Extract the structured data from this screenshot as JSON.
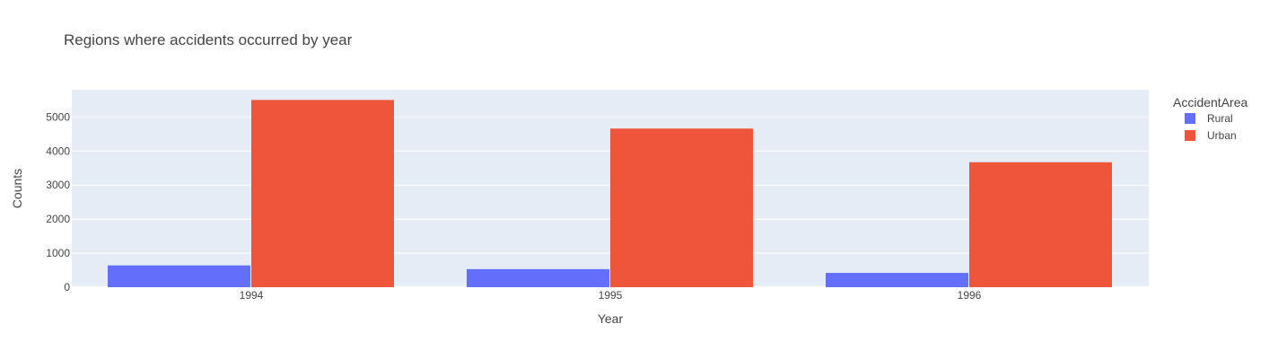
{
  "chart_data": {
    "type": "bar",
    "title": "Regions where accidents occurred by year",
    "xlabel": "Year",
    "ylabel": "Counts",
    "categories": [
      "1994",
      "1995",
      "1996"
    ],
    "series": [
      {
        "name": "Rural",
        "values": [
          640,
          530,
          420
        ],
        "color": "#636efa"
      },
      {
        "name": "Urban",
        "values": [
          5500,
          4660,
          3670
        ],
        "color": "#ef553b"
      }
    ],
    "ylim": [
      0,
      5800
    ],
    "yticks": [
      0,
      1000,
      2000,
      3000,
      4000,
      5000
    ],
    "ytick_labels": [
      "0",
      "1000",
      "2000",
      "3000",
      "4000",
      "5000"
    ],
    "legend": {
      "title": "AccidentArea",
      "placement": "right"
    },
    "grid": true,
    "plot_background": "#e5ecf6"
  }
}
